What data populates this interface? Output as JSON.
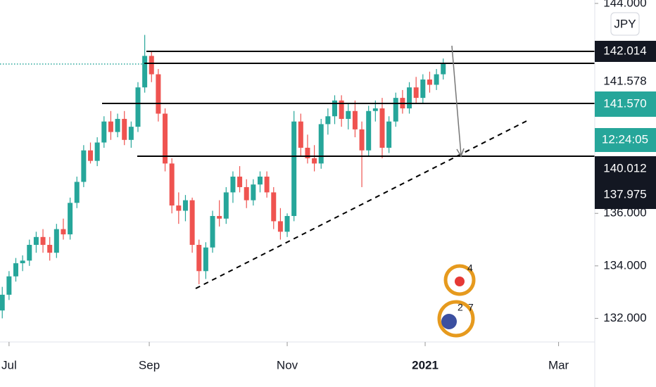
{
  "chart_data": {
    "type": "candlestick",
    "currency": "JPY",
    "x": [
      -3,
      0,
      3,
      6,
      9,
      12,
      15,
      18,
      21,
      24,
      27,
      30,
      33,
      36,
      39,
      42,
      45,
      48,
      51,
      54,
      57,
      60,
      63,
      66,
      69,
      72,
      75,
      78,
      81,
      84,
      87,
      90,
      93,
      96,
      99,
      102,
      105,
      108,
      111,
      114,
      117,
      120,
      123,
      126,
      129,
      132,
      135,
      138,
      141,
      144,
      147,
      150,
      153,
      156,
      159,
      162,
      165,
      168,
      171,
      174,
      177,
      180,
      183,
      186,
      189,
      192
    ],
    "open": [
      132.3,
      132.9,
      133.6,
      134.1,
      134.2,
      134.8,
      135.1,
      134.8,
      134.5,
      135.4,
      135.2,
      136.4,
      137.2,
      138.4,
      138.0,
      138.7,
      139.5,
      139.1,
      139.6,
      138.8,
      139.3,
      140.8,
      142.0,
      141.3,
      139.8,
      137.9,
      136.3,
      136.1,
      136.5,
      134.8,
      133.8,
      134.7,
      135.9,
      135.8,
      136.8,
      137.4,
      137.0,
      136.5,
      137.1,
      137.4,
      136.8,
      135.7,
      135.3,
      135.9,
      139.5,
      138.5,
      138.1,
      137.9,
      139.4,
      139.7,
      140.3,
      139.6,
      139.9,
      139.2,
      138.4,
      139.9,
      140.0,
      138.5,
      139.5,
      140.4,
      140.0,
      140.8,
      140.4,
      141.1,
      140.9,
      141.3
    ],
    "high": [
      133.2,
      133.8,
      134.3,
      134.4,
      135.0,
      135.3,
      135.4,
      135.1,
      135.6,
      135.8,
      136.6,
      137.4,
      138.6,
      138.7,
      138.9,
      139.7,
      139.9,
      139.8,
      139.9,
      139.5,
      141.0,
      142.8,
      142.2,
      141.5,
      140.0,
      138.1,
      136.8,
      136.7,
      136.6,
      135.0,
      134.9,
      136.1,
      136.5,
      137.0,
      137.6,
      137.8,
      137.3,
      137.3,
      137.6,
      137.6,
      137.0,
      136.2,
      136.0,
      139.9,
      139.8,
      139.0,
      138.6,
      139.6,
      140.0,
      140.5,
      140.5,
      140.2,
      140.3,
      139.5,
      140.1,
      140.3,
      140.4,
      139.7,
      140.6,
      140.7,
      141.0,
      141.2,
      141.3,
      141.4,
      141.5,
      141.9
    ],
    "low": [
      132.0,
      132.7,
      133.4,
      133.8,
      134.0,
      134.5,
      134.5,
      134.2,
      134.3,
      135.0,
      135.0,
      136.2,
      137.0,
      137.9,
      137.8,
      138.5,
      138.8,
      138.9,
      138.6,
      138.5,
      139.1,
      140.6,
      141.0,
      139.5,
      137.6,
      136.0,
      135.6,
      135.7,
      134.5,
      133.3,
      133.5,
      134.5,
      135.5,
      135.6,
      136.4,
      136.8,
      136.2,
      136.3,
      136.8,
      136.6,
      135.4,
      135.0,
      135.1,
      135.7,
      138.2,
      137.9,
      137.6,
      137.7,
      139.0,
      139.4,
      139.3,
      139.2,
      138.9,
      137.0,
      138.2,
      139.5,
      138.1,
      138.3,
      139.3,
      139.8,
      139.8,
      140.2,
      140.2,
      140.6,
      140.7,
      141.1
    ],
    "close": [
      132.9,
      133.6,
      134.1,
      134.2,
      134.8,
      135.1,
      134.8,
      134.5,
      135.4,
      135.2,
      136.4,
      137.2,
      138.4,
      138.0,
      138.7,
      139.5,
      139.1,
      139.6,
      138.8,
      139.3,
      140.8,
      142.0,
      141.3,
      139.8,
      137.9,
      136.3,
      136.1,
      136.5,
      134.8,
      133.8,
      134.7,
      135.9,
      135.8,
      136.8,
      137.4,
      137.0,
      136.5,
      137.1,
      137.4,
      136.8,
      135.7,
      135.3,
      135.9,
      139.5,
      138.5,
      138.1,
      137.9,
      139.4,
      139.7,
      140.3,
      139.6,
      139.9,
      139.2,
      138.4,
      139.9,
      140.0,
      138.5,
      139.5,
      140.4,
      140.0,
      140.8,
      140.4,
      141.1,
      140.9,
      141.3,
      141.7
    ],
    "up_color": "#26a69a",
    "down_color": "#ef5350",
    "xlim": [
      -4,
      259
    ],
    "xticks": [
      {
        "value": 0,
        "label": "Jul"
      },
      {
        "value": 62,
        "label": "Sep"
      },
      {
        "value": 123,
        "label": "Nov"
      },
      {
        "value": 184,
        "label": "2021"
      },
      {
        "value": 243,
        "label": "Mar"
      }
    ],
    "ylim": [
      131.1,
      144.13
    ],
    "yticks": [
      {
        "value": 132,
        "label": "132.000"
      },
      {
        "value": 134,
        "label": "134.000"
      },
      {
        "value": 136,
        "label": "136.000"
      },
      {
        "value": 144,
        "label": "144.000"
      }
    ],
    "price_labels": [
      "142.014",
      "141.578",
      "141.570",
      "12:24:05",
      "140.012",
      "137.975"
    ],
    "logo_texts": [
      "4",
      "2",
      "7"
    ]
  }
}
